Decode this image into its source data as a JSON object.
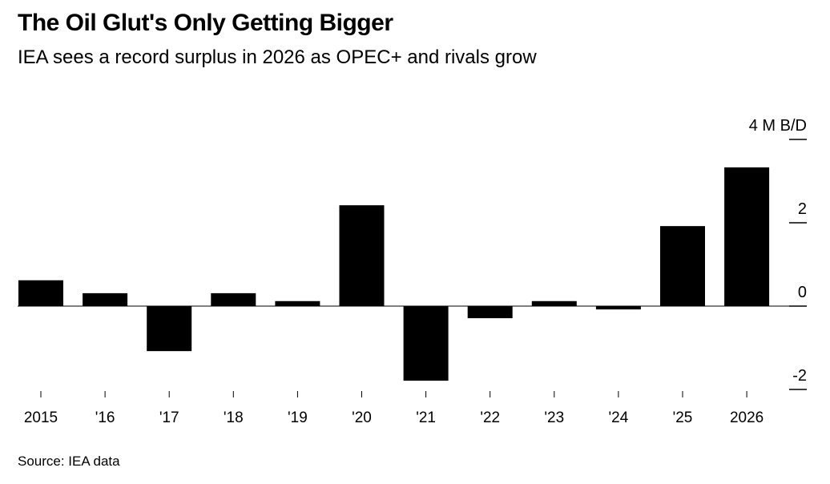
{
  "chart_data": {
    "type": "bar",
    "title": "The Oil Glut's Only Getting Bigger",
    "subtitle": "IEA sees a record surplus in 2026 as OPEC+ and rivals grow",
    "source": "Source: IEA data",
    "categories": [
      "2015",
      "'16",
      "'17",
      "'18",
      "'19",
      "'20",
      "'21",
      "'22",
      "'23",
      "'24",
      "'25",
      "2026"
    ],
    "values": [
      0.62,
      0.31,
      -1.08,
      0.31,
      0.12,
      2.42,
      -1.79,
      -0.29,
      0.12,
      -0.08,
      1.92,
      3.33
    ],
    "ylabel": "M B/D",
    "yticks": [
      {
        "v": 4,
        "label": "4 M B/D"
      },
      {
        "v": 2,
        "label": "2"
      },
      {
        "v": 0,
        "label": "0"
      },
      {
        "v": -2,
        "label": "-2"
      }
    ],
    "ylim": [
      -2,
      4
    ],
    "bar_color": "#000000",
    "grid": false
  }
}
